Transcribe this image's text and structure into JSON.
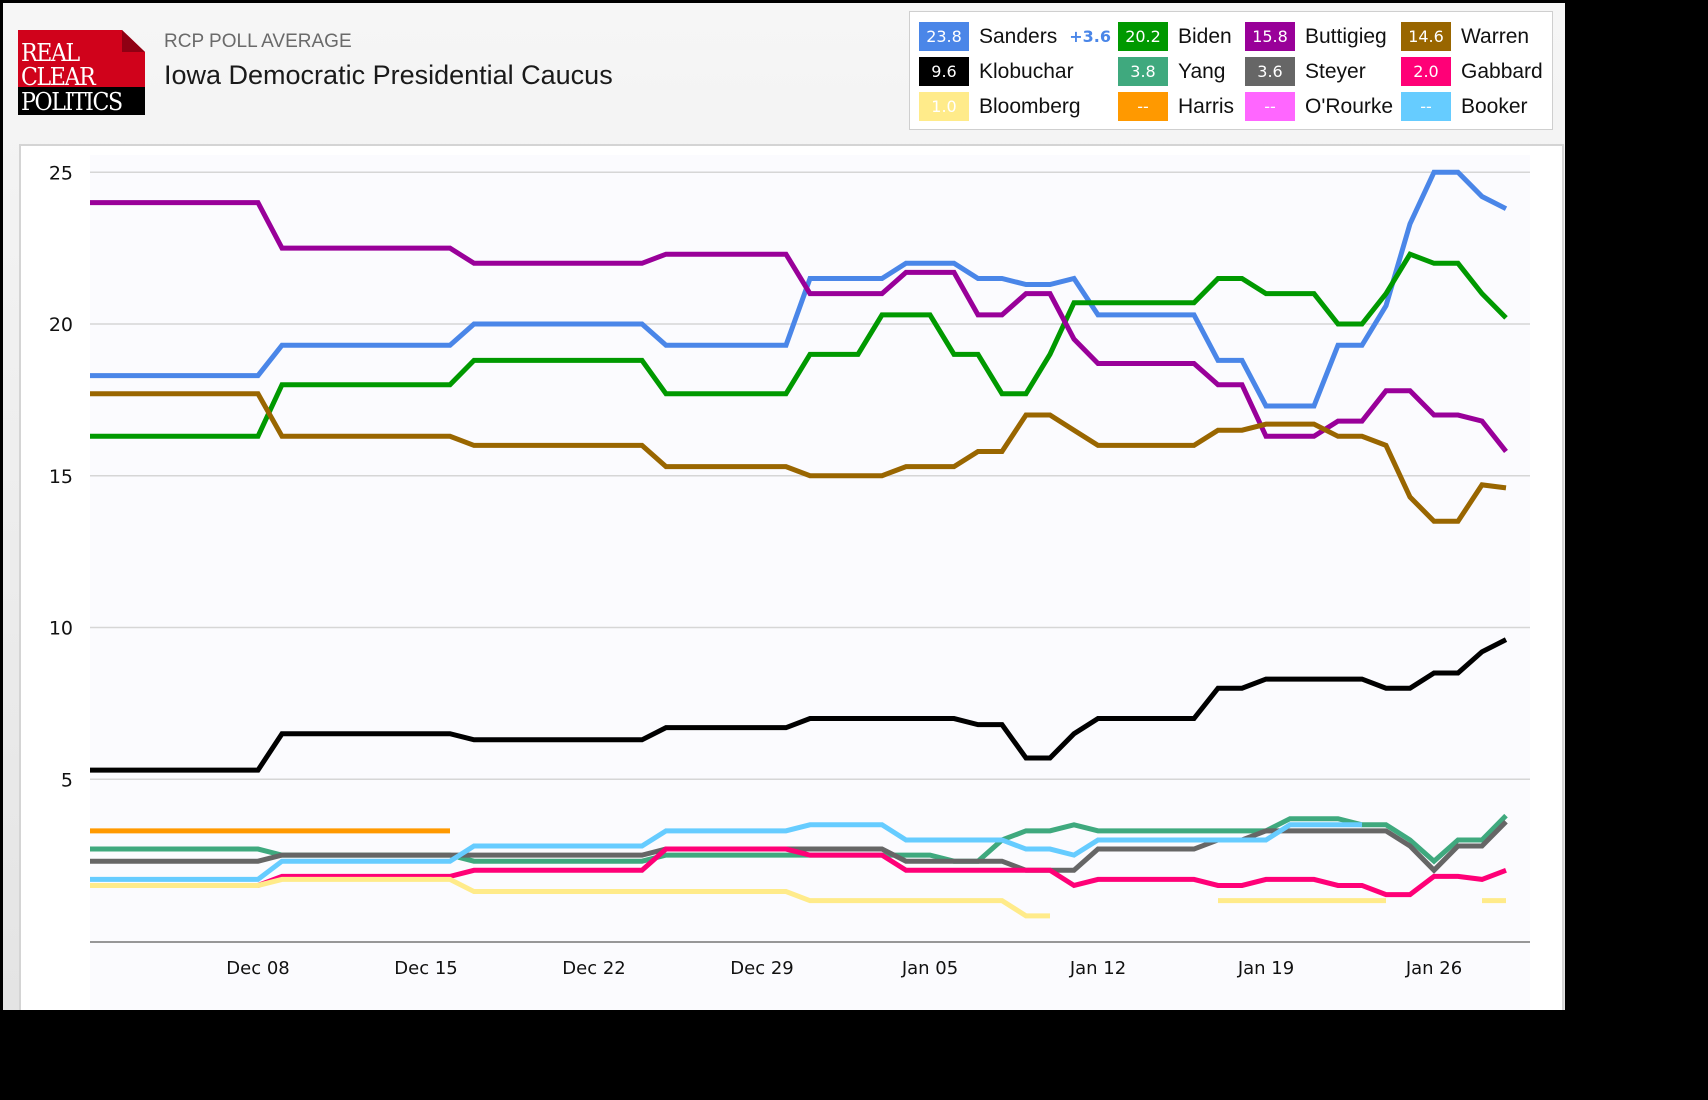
{
  "header": {
    "logo": {
      "line1": "REAL",
      "line2": "CLEAR",
      "line3": "POLITICS"
    },
    "subtitle": "RCP POLL AVERAGE",
    "title": "Iowa Democratic Presidential Caucus"
  },
  "legend": {
    "items": [
      {
        "value": "23.8",
        "name": "Sanders",
        "spread": "+3.6",
        "color": "#4a86e8"
      },
      {
        "value": "20.2",
        "name": "Biden",
        "color": "#009900"
      },
      {
        "value": "15.8",
        "name": "Buttigieg",
        "color": "#990099"
      },
      {
        "value": "14.6",
        "name": "Warren",
        "color": "#996600"
      },
      {
        "value": "9.6",
        "name": "Klobuchar",
        "color": "#000000"
      },
      {
        "value": "3.8",
        "name": "Yang",
        "color": "#3fa97e"
      },
      {
        "value": "3.6",
        "name": "Steyer",
        "color": "#666666"
      },
      {
        "value": "2.0",
        "name": "Gabbard",
        "color": "#ff0077"
      },
      {
        "value": "1.0",
        "name": "Bloomberg",
        "color": "#ffeb8a"
      },
      {
        "value": "--",
        "name": "Harris",
        "color": "#ff9900"
      },
      {
        "value": "--",
        "name": "O'Rourke",
        "color": "#ff66ff"
      },
      {
        "value": "--",
        "name": "Booker",
        "color": "#66ccff"
      }
    ]
  },
  "chart_data": {
    "type": "line",
    "title": "Iowa Democratic Presidential Caucus",
    "xlabel": "",
    "ylabel": "",
    "x_unit": "days since Dec 01",
    "xlim": [
      0,
      59
    ],
    "ylim": [
      0,
      25.5
    ],
    "grid": true,
    "yticks": [
      "5",
      "10",
      "15",
      "20",
      "25"
    ],
    "ytick_values": [
      5,
      10,
      15,
      20,
      25
    ],
    "xticks": [
      "Dec 08",
      "Dec 15",
      "Dec 22",
      "Dec 29",
      "Jan 05",
      "Jan 12",
      "Jan 19",
      "Jan 26"
    ],
    "xtick_values": [
      7,
      14,
      21,
      28,
      35,
      42,
      49,
      56
    ],
    "legend": "top-right",
    "series": [
      {
        "name": "Sanders",
        "color": "#4a86e8",
        "points": [
          [
            0,
            18.3
          ],
          [
            7,
            18.3
          ],
          [
            8,
            19.3
          ],
          [
            15,
            19.3
          ],
          [
            16,
            20.0
          ],
          [
            23,
            20.0
          ],
          [
            24,
            19.3
          ],
          [
            29,
            19.3
          ],
          [
            30,
            21.5
          ],
          [
            33,
            21.5
          ],
          [
            34,
            22.0
          ],
          [
            36,
            22.0
          ],
          [
            37,
            21.5
          ],
          [
            38,
            21.5
          ],
          [
            39,
            21.3
          ],
          [
            40,
            21.3
          ],
          [
            41,
            21.5
          ],
          [
            42,
            20.3
          ],
          [
            46,
            20.3
          ],
          [
            47,
            18.8
          ],
          [
            48,
            18.8
          ],
          [
            49,
            17.3
          ],
          [
            51,
            17.3
          ],
          [
            52,
            19.3
          ],
          [
            53,
            19.3
          ],
          [
            54,
            20.6
          ],
          [
            55,
            23.3
          ],
          [
            56,
            25.0
          ],
          [
            57,
            25.0
          ],
          [
            58,
            24.2
          ],
          [
            59,
            23.8
          ]
        ]
      },
      {
        "name": "Biden",
        "color": "#009900",
        "points": [
          [
            0,
            16.3
          ],
          [
            7,
            16.3
          ],
          [
            8,
            18.0
          ],
          [
            15,
            18.0
          ],
          [
            16,
            18.8
          ],
          [
            23,
            18.8
          ],
          [
            24,
            17.7
          ],
          [
            29,
            17.7
          ],
          [
            30,
            19.0
          ],
          [
            32,
            19.0
          ],
          [
            33,
            20.3
          ],
          [
            35,
            20.3
          ],
          [
            36,
            19.0
          ],
          [
            37,
            19.0
          ],
          [
            38,
            17.7
          ],
          [
            39,
            17.7
          ],
          [
            40,
            19.0
          ],
          [
            41,
            20.7
          ],
          [
            46,
            20.7
          ],
          [
            47,
            21.5
          ],
          [
            48,
            21.5
          ],
          [
            49,
            21.0
          ],
          [
            51,
            21.0
          ],
          [
            52,
            20.0
          ],
          [
            53,
            20.0
          ],
          [
            54,
            21.0
          ],
          [
            55,
            22.3
          ],
          [
            56,
            22.0
          ],
          [
            57,
            22.0
          ],
          [
            58,
            21.0
          ],
          [
            59,
            20.2
          ]
        ]
      },
      {
        "name": "Buttigieg",
        "color": "#990099",
        "points": [
          [
            0,
            24.0
          ],
          [
            7,
            24.0
          ],
          [
            8,
            22.5
          ],
          [
            15,
            22.5
          ],
          [
            16,
            22.0
          ],
          [
            23,
            22.0
          ],
          [
            24,
            22.3
          ],
          [
            29,
            22.3
          ],
          [
            30,
            21.0
          ],
          [
            33,
            21.0
          ],
          [
            34,
            21.7
          ],
          [
            36,
            21.7
          ],
          [
            37,
            20.3
          ],
          [
            38,
            20.3
          ],
          [
            39,
            21.0
          ],
          [
            40,
            21.0
          ],
          [
            41,
            19.5
          ],
          [
            42,
            18.7
          ],
          [
            46,
            18.7
          ],
          [
            47,
            18.0
          ],
          [
            48,
            18.0
          ],
          [
            49,
            16.3
          ],
          [
            51,
            16.3
          ],
          [
            52,
            16.8
          ],
          [
            53,
            16.8
          ],
          [
            54,
            17.8
          ],
          [
            55,
            17.8
          ],
          [
            56,
            17.0
          ],
          [
            57,
            17.0
          ],
          [
            58,
            16.8
          ],
          [
            59,
            15.8
          ]
        ]
      },
      {
        "name": "Warren",
        "color": "#996600",
        "points": [
          [
            0,
            17.7
          ],
          [
            7,
            17.7
          ],
          [
            8,
            16.3
          ],
          [
            15,
            16.3
          ],
          [
            16,
            16.0
          ],
          [
            23,
            16.0
          ],
          [
            24,
            15.3
          ],
          [
            29,
            15.3
          ],
          [
            30,
            15.0
          ],
          [
            33,
            15.0
          ],
          [
            34,
            15.3
          ],
          [
            36,
            15.3
          ],
          [
            37,
            15.8
          ],
          [
            38,
            15.8
          ],
          [
            39,
            17.0
          ],
          [
            40,
            17.0
          ],
          [
            41,
            16.5
          ],
          [
            42,
            16.0
          ],
          [
            46,
            16.0
          ],
          [
            47,
            16.5
          ],
          [
            48,
            16.5
          ],
          [
            49,
            16.7
          ],
          [
            51,
            16.7
          ],
          [
            52,
            16.3
          ],
          [
            53,
            16.3
          ],
          [
            54,
            16.0
          ],
          [
            55,
            14.3
          ],
          [
            56,
            13.5
          ],
          [
            57,
            13.5
          ],
          [
            58,
            14.7
          ],
          [
            59,
            14.6
          ]
        ]
      },
      {
        "name": "Klobuchar",
        "color": "#000000",
        "points": [
          [
            0,
            5.3
          ],
          [
            7,
            5.3
          ],
          [
            8,
            6.5
          ],
          [
            15,
            6.5
          ],
          [
            16,
            6.3
          ],
          [
            23,
            6.3
          ],
          [
            24,
            6.7
          ],
          [
            29,
            6.7
          ],
          [
            30,
            7.0
          ],
          [
            36,
            7.0
          ],
          [
            37,
            6.8
          ],
          [
            38,
            6.8
          ],
          [
            39,
            5.7
          ],
          [
            40,
            5.7
          ],
          [
            41,
            6.5
          ],
          [
            42,
            7.0
          ],
          [
            46,
            7.0
          ],
          [
            47,
            8.0
          ],
          [
            48,
            8.0
          ],
          [
            49,
            8.3
          ],
          [
            53,
            8.3
          ],
          [
            54,
            8.0
          ],
          [
            55,
            8.0
          ],
          [
            56,
            8.5
          ],
          [
            57,
            8.5
          ],
          [
            58,
            9.2
          ],
          [
            59,
            9.6
          ]
        ]
      },
      {
        "name": "Harris",
        "color": "#ff9900",
        "points": [
          [
            0,
            3.3
          ],
          [
            15,
            3.3
          ]
        ]
      },
      {
        "name": "Yang",
        "color": "#3fa97e",
        "points": [
          [
            0,
            2.7
          ],
          [
            7,
            2.7
          ],
          [
            8,
            2.5
          ],
          [
            15,
            2.5
          ],
          [
            16,
            2.3
          ],
          [
            23,
            2.3
          ],
          [
            24,
            2.5
          ],
          [
            35,
            2.5
          ],
          [
            36,
            2.3
          ],
          [
            37,
            2.3
          ],
          [
            38,
            3.0
          ],
          [
            39,
            3.3
          ],
          [
            40,
            3.3
          ],
          [
            41,
            3.5
          ],
          [
            42,
            3.3
          ],
          [
            49,
            3.3
          ],
          [
            50,
            3.7
          ],
          [
            52,
            3.7
          ],
          [
            53,
            3.5
          ],
          [
            54,
            3.5
          ],
          [
            55,
            3.0
          ],
          [
            56,
            2.3
          ],
          [
            57,
            3.0
          ],
          [
            58,
            3.0
          ],
          [
            59,
            3.8
          ]
        ]
      },
      {
        "name": "Steyer",
        "color": "#666666",
        "points": [
          [
            0,
            2.3
          ],
          [
            7,
            2.3
          ],
          [
            8,
            2.5
          ],
          [
            23,
            2.5
          ],
          [
            24,
            2.7
          ],
          [
            33,
            2.7
          ],
          [
            34,
            2.3
          ],
          [
            38,
            2.3
          ],
          [
            39,
            2.0
          ],
          [
            40,
            2.0
          ],
          [
            41,
            2.0
          ],
          [
            42,
            2.7
          ],
          [
            46,
            2.7
          ],
          [
            47,
            3.0
          ],
          [
            48,
            3.0
          ],
          [
            49,
            3.3
          ],
          [
            53,
            3.3
          ],
          [
            54,
            3.3
          ],
          [
            55,
            2.8
          ],
          [
            56,
            2.0
          ],
          [
            57,
            2.8
          ],
          [
            58,
            2.8
          ],
          [
            59,
            3.6
          ]
        ]
      },
      {
        "name": "Booker",
        "color": "#66ccff",
        "points": [
          [
            0,
            1.7
          ],
          [
            7,
            1.7
          ],
          [
            8,
            2.3
          ],
          [
            15,
            2.3
          ],
          [
            16,
            2.8
          ],
          [
            23,
            2.8
          ],
          [
            24,
            3.3
          ],
          [
            29,
            3.3
          ],
          [
            30,
            3.5
          ],
          [
            33,
            3.5
          ],
          [
            34,
            3.0
          ],
          [
            37,
            3.0
          ],
          [
            38,
            3.0
          ],
          [
            39,
            2.7
          ],
          [
            40,
            2.7
          ],
          [
            41,
            2.5
          ],
          [
            42,
            3.0
          ],
          [
            49,
            3.0
          ],
          [
            50,
            3.5
          ],
          [
            53,
            3.5
          ]
        ]
      },
      {
        "name": "Gabbard",
        "color": "#ff0077",
        "points": [
          [
            0,
            1.5
          ],
          [
            7,
            1.5
          ],
          [
            8,
            1.8
          ],
          [
            15,
            1.8
          ],
          [
            16,
            2.0
          ],
          [
            23,
            2.0
          ],
          [
            24,
            2.7
          ],
          [
            29,
            2.7
          ],
          [
            30,
            2.5
          ],
          [
            33,
            2.5
          ],
          [
            34,
            2.0
          ],
          [
            40,
            2.0
          ],
          [
            41,
            1.5
          ],
          [
            42,
            1.7
          ],
          [
            46,
            1.7
          ],
          [
            47,
            1.5
          ],
          [
            48,
            1.5
          ],
          [
            49,
            1.7
          ],
          [
            51,
            1.7
          ],
          [
            52,
            1.5
          ],
          [
            53,
            1.5
          ],
          [
            54,
            1.2
          ],
          [
            55,
            1.2
          ],
          [
            56,
            1.8
          ],
          [
            57,
            1.8
          ],
          [
            58,
            1.7
          ],
          [
            59,
            2.0
          ]
        ]
      },
      {
        "name": "Bloomberg",
        "color": "#ffeb8a",
        "points": [
          [
            0,
            1.5
          ],
          [
            7,
            1.5
          ],
          [
            8,
            1.7
          ],
          [
            15,
            1.7
          ],
          [
            16,
            1.3
          ],
          [
            29,
            1.3
          ],
          [
            30,
            1.0
          ],
          [
            37,
            1.0
          ],
          [
            38,
            1.0
          ],
          [
            39,
            0.5
          ],
          [
            40,
            0.5
          ],
          null,
          [
            47,
            1.0
          ],
          [
            54,
            1.0
          ],
          null,
          [
            58,
            1.0
          ],
          [
            59,
            1.0
          ]
        ]
      }
    ]
  }
}
